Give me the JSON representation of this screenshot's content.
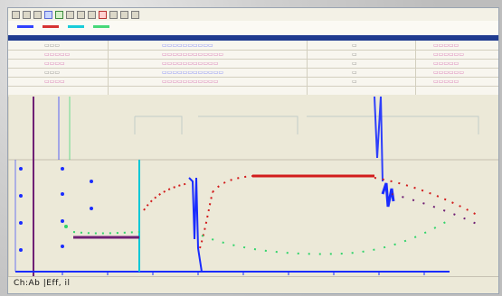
{
  "colors": {
    "blue": "#1a2cff",
    "red": "#d21d1d",
    "cyan": "#00c7d6",
    "green": "#32d46b",
    "purple": "#6f1f74",
    "navy": "#1f3b8f",
    "panel": "#ece9d8"
  },
  "status": {
    "text": "Ch:Ab |Eff, il"
  }
}
